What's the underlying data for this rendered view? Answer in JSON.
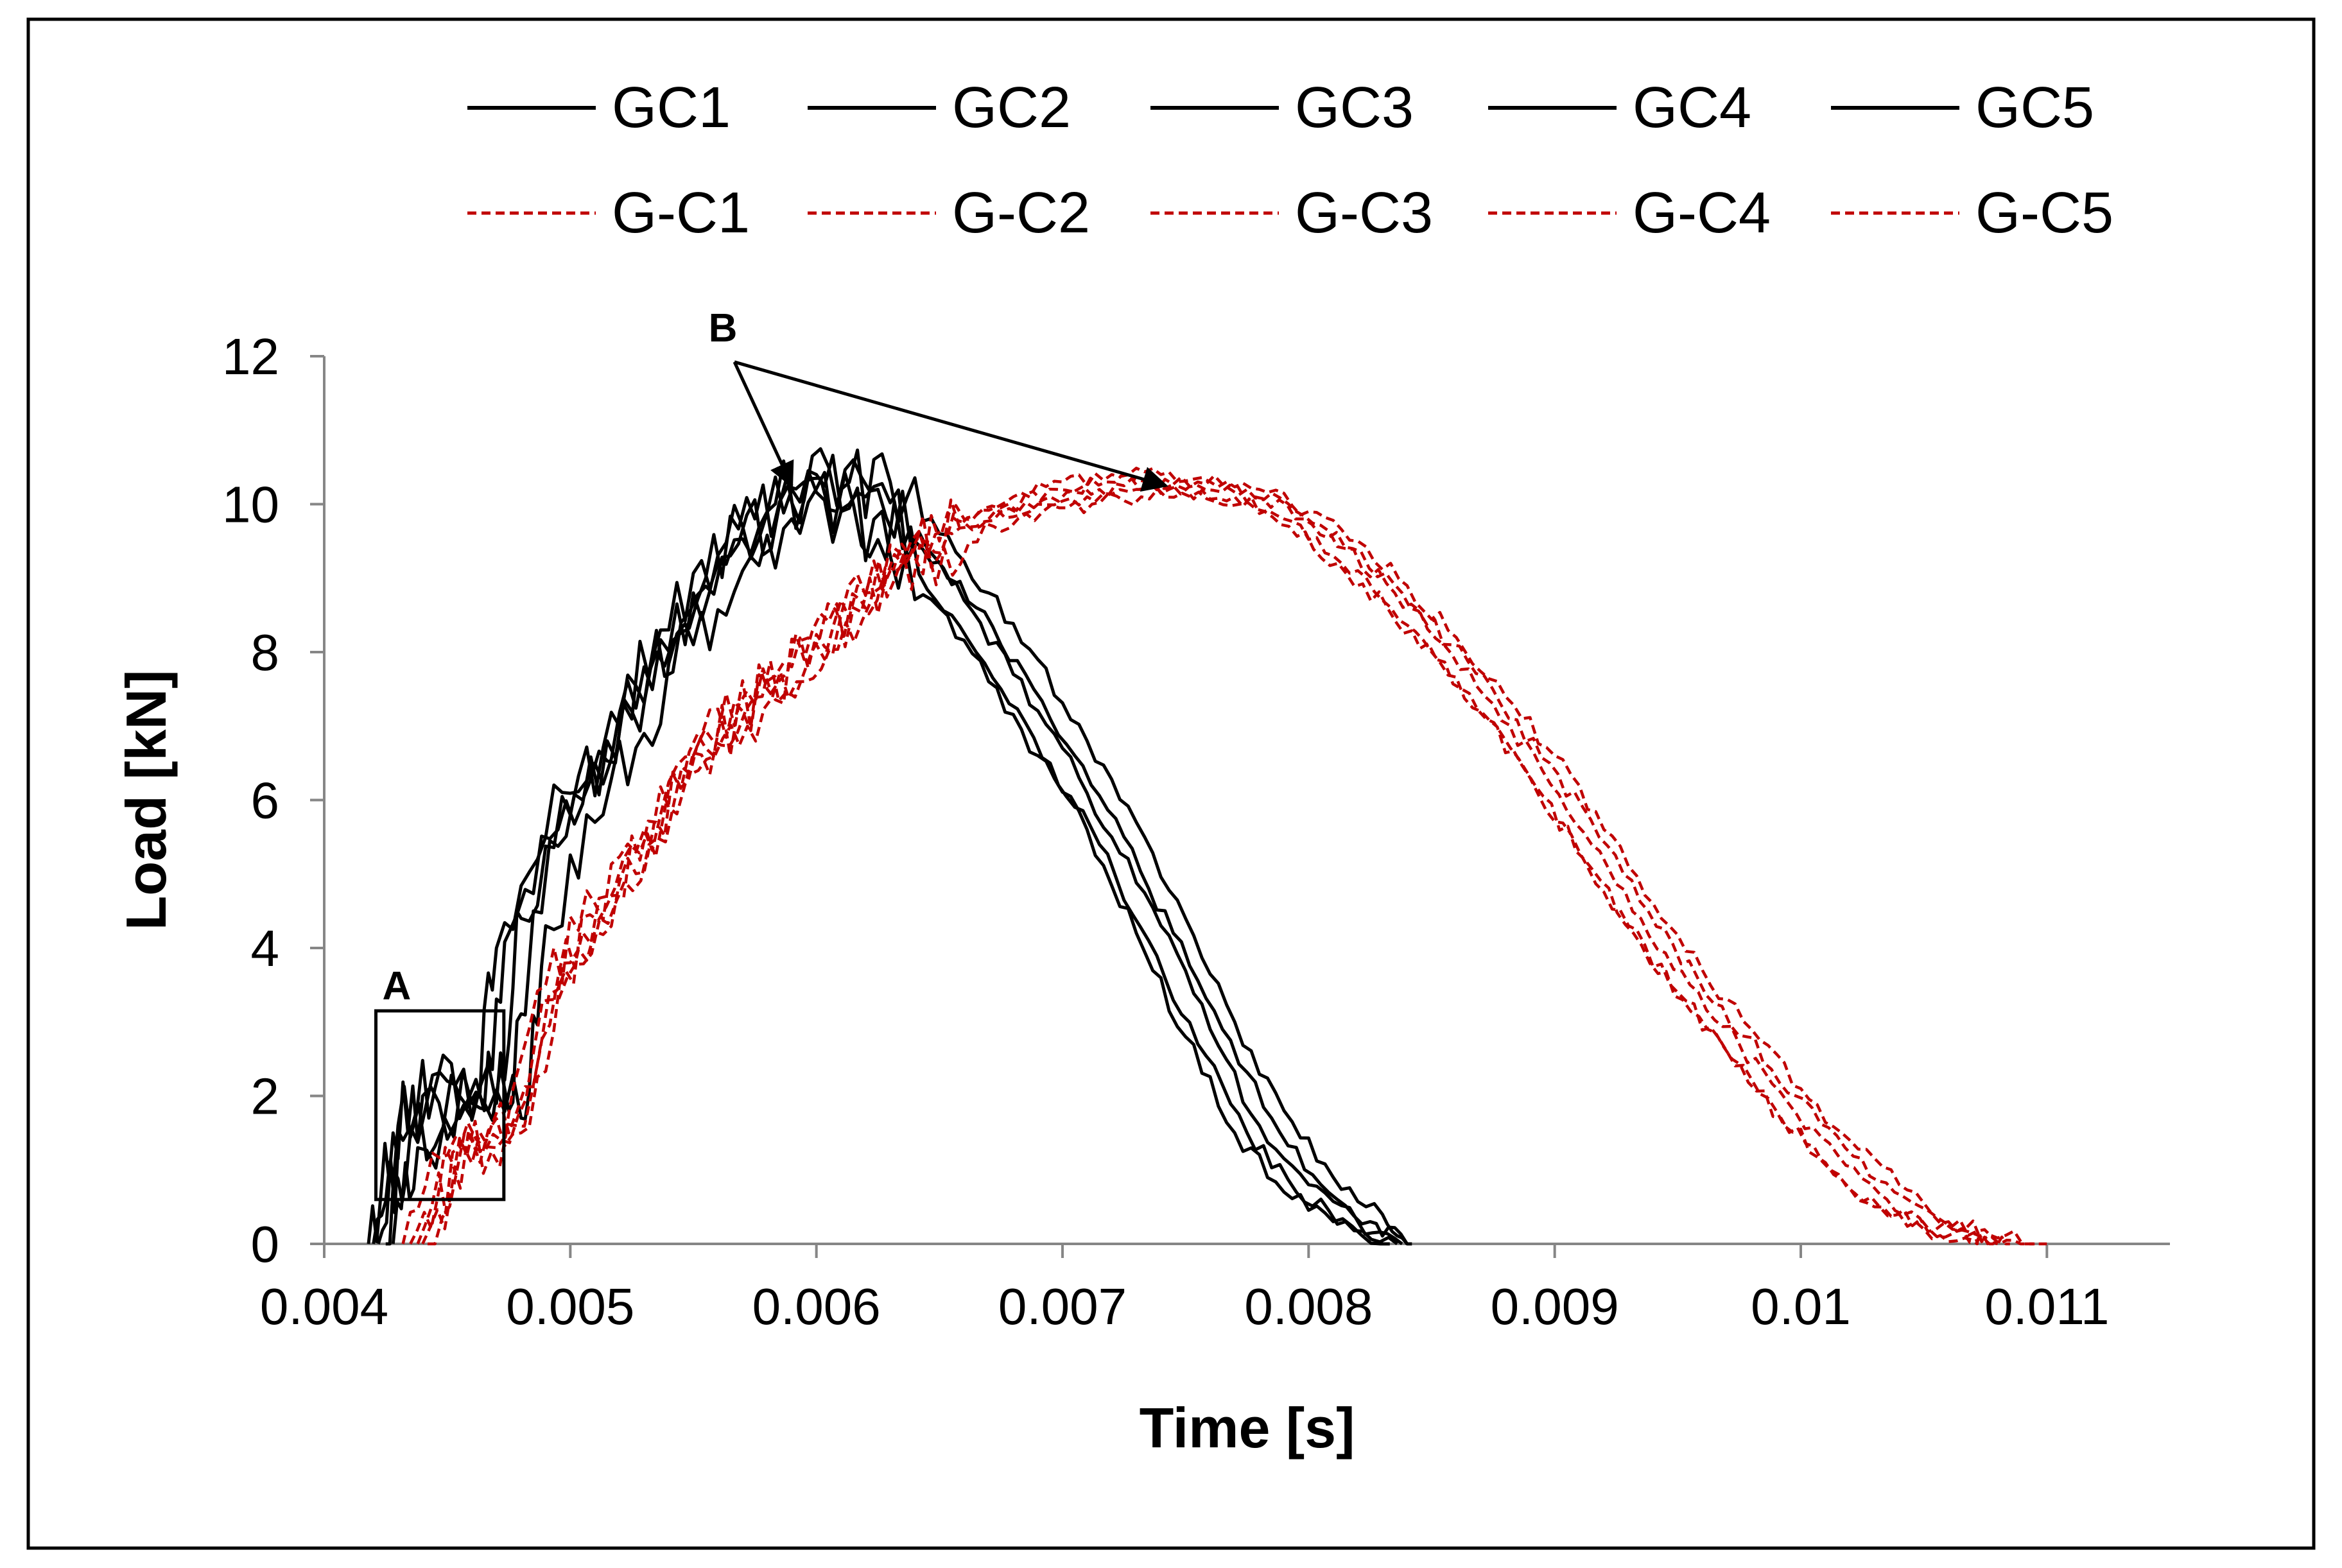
{
  "chart_data": {
    "type": "line",
    "title": "",
    "xlabel": "Time [s]",
    "ylabel": "Load [kN]",
    "xlim": [
      0.004,
      0.0115
    ],
    "ylim": [
      0,
      12
    ],
    "xticks": [
      0.004,
      0.005,
      0.006,
      0.007,
      0.008,
      0.009,
      0.01,
      0.011
    ],
    "xtick_labels": [
      "0.004",
      "0.005",
      "0.006",
      "0.007",
      "0.008",
      "0.009",
      "0.01",
      "0.011"
    ],
    "yticks": [
      0,
      2,
      4,
      6,
      8,
      10,
      12
    ],
    "ytick_labels": [
      "0",
      "2",
      "4",
      "6",
      "8",
      "10",
      "12"
    ],
    "grid": false,
    "legend_position": "top",
    "colors": {
      "solid": "#000000",
      "dashed": "#c00000"
    },
    "series": [
      {
        "name": "GC1",
        "style": "solid",
        "color": "#000000",
        "x": [
          0.00418,
          0.00428,
          0.0044,
          0.0046,
          0.0047,
          0.0049,
          0.0051,
          0.0053,
          0.0055,
          0.0057,
          0.0059,
          0.0061,
          0.0063,
          0.0065,
          0.0067,
          0.0069,
          0.0071,
          0.0073,
          0.0075,
          0.0077,
          0.0079,
          0.0081,
          0.00833
        ],
        "y": [
          0,
          1.5,
          2.0,
          1.7,
          4.0,
          5.5,
          6.5,
          7.8,
          8.8,
          9.7,
          10.2,
          9.9,
          9.3,
          8.6,
          7.6,
          6.6,
          5.6,
          4.2,
          2.8,
          1.5,
          0.7,
          0.3,
          0
        ]
      },
      {
        "name": "GC2",
        "style": "solid",
        "color": "#000000",
        "x": [
          0.0042,
          0.0043,
          0.00445,
          0.00465,
          0.00475,
          0.00495,
          0.00515,
          0.00535,
          0.00555,
          0.00575,
          0.00595,
          0.00615,
          0.00635,
          0.00655,
          0.00675,
          0.00695,
          0.00715,
          0.00735,
          0.00755,
          0.00775,
          0.00795,
          0.00815,
          0.00836
        ],
        "y": [
          0,
          1.6,
          2.1,
          1.8,
          4.2,
          5.6,
          6.8,
          8.0,
          9.0,
          9.8,
          10.3,
          10.0,
          9.4,
          8.5,
          7.5,
          6.5,
          5.4,
          4.1,
          2.7,
          1.5,
          0.7,
          0.3,
          0
        ]
      },
      {
        "name": "GC3",
        "style": "solid",
        "color": "#000000",
        "x": [
          0.00422,
          0.00432,
          0.0045,
          0.0047,
          0.0048,
          0.005,
          0.0052,
          0.0054,
          0.0056,
          0.0058,
          0.006,
          0.0062,
          0.0064,
          0.0066,
          0.0068,
          0.007,
          0.0072,
          0.0074,
          0.0076,
          0.0078,
          0.008,
          0.0082,
          0.00838
        ],
        "y": [
          0,
          1.4,
          2.2,
          1.9,
          4.4,
          5.8,
          7.0,
          8.3,
          9.2,
          9.9,
          10.4,
          10.1,
          9.5,
          8.7,
          7.7,
          6.7,
          5.5,
          4.3,
          2.9,
          1.6,
          0.8,
          0.3,
          0
        ]
      },
      {
        "name": "GC4",
        "style": "solid",
        "color": "#000000",
        "x": [
          0.00425,
          0.00435,
          0.00455,
          0.00475,
          0.00485,
          0.00505,
          0.00525,
          0.00545,
          0.00565,
          0.00585,
          0.00605,
          0.00625,
          0.00645,
          0.00665,
          0.00685,
          0.00705,
          0.00725,
          0.00745,
          0.00765,
          0.00785,
          0.00805,
          0.00825,
          0.0084
        ],
        "y": [
          0,
          1.5,
          2.0,
          1.8,
          4.5,
          6.0,
          7.2,
          8.4,
          9.3,
          10.0,
          10.5,
          10.2,
          9.4,
          8.6,
          7.7,
          6.6,
          5.5,
          4.2,
          2.9,
          1.7,
          0.8,
          0.3,
          0
        ]
      },
      {
        "name": "GC5",
        "style": "solid",
        "color": "#000000",
        "x": [
          0.00428,
          0.00438,
          0.0046,
          0.0048,
          0.0049,
          0.0051,
          0.0053,
          0.0055,
          0.0057,
          0.0059,
          0.0061,
          0.0063,
          0.0065,
          0.0067,
          0.0069,
          0.0071,
          0.0073,
          0.0075,
          0.0077,
          0.0079,
          0.0081,
          0.0083,
          0.00842
        ],
        "y": [
          0,
          1.3,
          1.9,
          1.7,
          4.3,
          5.7,
          6.9,
          8.1,
          9.1,
          9.8,
          10.2,
          10.3,
          9.6,
          8.8,
          7.9,
          6.8,
          5.7,
          4.4,
          3.0,
          1.8,
          0.9,
          0.4,
          0
        ]
      },
      {
        "name": "G-C1",
        "style": "dashed",
        "color": "#c00000",
        "x": [
          0.00432,
          0.0045,
          0.0047,
          0.0049,
          0.0051,
          0.0053,
          0.0055,
          0.0057,
          0.0059,
          0.0061,
          0.0063,
          0.0065,
          0.0067,
          0.0069,
          0.0071,
          0.0073,
          0.0075,
          0.0077,
          0.0079,
          0.0081,
          0.0083,
          0.0085,
          0.0087,
          0.0089,
          0.0091,
          0.0093,
          0.0095,
          0.0097,
          0.0099,
          0.0101,
          0.0103,
          0.0105,
          0.0107,
          0.01075
        ],
        "y": [
          0,
          1.2,
          1.3,
          3.5,
          4.6,
          5.6,
          6.6,
          7.2,
          7.8,
          8.5,
          9.1,
          9.5,
          9.8,
          10.0,
          10.1,
          10.2,
          10.2,
          10.1,
          9.8,
          9.3,
          8.7,
          8.0,
          7.2,
          6.3,
          5.3,
          4.3,
          3.4,
          2.6,
          1.8,
          1.1,
          0.5,
          0.2,
          0.05,
          0
        ]
      },
      {
        "name": "G-C2",
        "style": "dashed",
        "color": "#c00000",
        "x": [
          0.00435,
          0.00452,
          0.00472,
          0.00492,
          0.00512,
          0.00532,
          0.00552,
          0.00572,
          0.00592,
          0.00612,
          0.00632,
          0.00652,
          0.00672,
          0.00692,
          0.00712,
          0.00732,
          0.00752,
          0.00772,
          0.00792,
          0.00812,
          0.00832,
          0.00852,
          0.00872,
          0.00892,
          0.00912,
          0.00932,
          0.00952,
          0.00972,
          0.00992,
          0.01012,
          0.01032,
          0.01052,
          0.01072,
          0.0108
        ],
        "y": [
          0,
          1.1,
          1.4,
          3.3,
          4.4,
          5.4,
          6.4,
          7.0,
          7.6,
          8.4,
          9.0,
          9.4,
          9.7,
          9.9,
          10.0,
          10.1,
          10.1,
          10.0,
          9.7,
          9.2,
          8.6,
          7.9,
          7.1,
          6.2,
          5.2,
          4.2,
          3.3,
          2.5,
          1.7,
          1.0,
          0.5,
          0.2,
          0.05,
          0
        ]
      },
      {
        "name": "G-C3",
        "style": "dashed",
        "color": "#c00000",
        "x": [
          0.00438,
          0.00455,
          0.00475,
          0.00495,
          0.00515,
          0.00535,
          0.00555,
          0.00575,
          0.00595,
          0.00615,
          0.00635,
          0.00655,
          0.00675,
          0.00695,
          0.00715,
          0.00735,
          0.00755,
          0.00775,
          0.00795,
          0.00815,
          0.00835,
          0.00855,
          0.00875,
          0.00895,
          0.00915,
          0.00935,
          0.00955,
          0.00975,
          0.00995,
          0.01015,
          0.01035,
          0.01055,
          0.01075,
          0.01085
        ],
        "y": [
          0,
          1.3,
          1.5,
          3.6,
          4.7,
          5.7,
          6.7,
          7.3,
          7.9,
          8.6,
          9.2,
          9.6,
          9.9,
          10.1,
          10.2,
          10.3,
          10.3,
          10.2,
          9.9,
          9.4,
          8.8,
          8.1,
          7.3,
          6.4,
          5.4,
          4.4,
          3.5,
          2.7,
          1.9,
          1.2,
          0.6,
          0.2,
          0.05,
          0
        ]
      },
      {
        "name": "G-C4",
        "style": "dashed",
        "color": "#c00000",
        "x": [
          0.0044,
          0.00458,
          0.00478,
          0.00498,
          0.00518,
          0.00538,
          0.00558,
          0.00578,
          0.00598,
          0.00618,
          0.00638,
          0.00658,
          0.00678,
          0.00698,
          0.00718,
          0.00738,
          0.00758,
          0.00778,
          0.00798,
          0.00818,
          0.00838,
          0.00858,
          0.00878,
          0.00898,
          0.00918,
          0.00938,
          0.00958,
          0.00978,
          0.00998,
          0.01018,
          0.01038,
          0.01058,
          0.01078,
          0.01095
        ],
        "y": [
          0,
          1.2,
          1.6,
          3.7,
          4.8,
          5.8,
          6.8,
          7.4,
          8.0,
          8.7,
          9.3,
          9.7,
          10.0,
          10.2,
          10.3,
          10.3,
          10.2,
          10.1,
          9.8,
          9.4,
          8.8,
          8.1,
          7.3,
          6.5,
          5.5,
          4.5,
          3.6,
          2.8,
          2.0,
          1.3,
          0.7,
          0.3,
          0.08,
          0
        ]
      },
      {
        "name": "G-C5",
        "style": "dashed",
        "color": "#c00000",
        "x": [
          0.00442,
          0.0046,
          0.0048,
          0.005,
          0.0052,
          0.0054,
          0.0056,
          0.0058,
          0.006,
          0.0062,
          0.0064,
          0.0066,
          0.0068,
          0.007,
          0.0072,
          0.0074,
          0.0076,
          0.0078,
          0.008,
          0.0082,
          0.0084,
          0.0086,
          0.0088,
          0.009,
          0.0092,
          0.0094,
          0.0096,
          0.0098,
          0.01,
          0.0102,
          0.0104,
          0.0106,
          0.0108,
          0.011
        ],
        "y": [
          0,
          1.4,
          1.5,
          3.8,
          4.9,
          5.9,
          6.9,
          7.5,
          8.1,
          8.8,
          9.4,
          9.8,
          10.1,
          10.3,
          10.4,
          10.4,
          10.3,
          10.2,
          9.9,
          9.5,
          8.9,
          8.2,
          7.4,
          6.6,
          5.6,
          4.6,
          3.7,
          2.9,
          2.1,
          1.4,
          0.8,
          0.3,
          0.08,
          0
        ]
      }
    ],
    "annotations": [
      {
        "label": "A",
        "kind": "box",
        "x_range": [
          0.00421,
          0.00473
        ],
        "y_range": [
          0.6,
          3.15
        ]
      },
      {
        "label": "B",
        "kind": "arrows",
        "text_at": [
          0.00562,
          12.2
        ],
        "targets": [
          [
            0.0059,
            10.25
          ],
          [
            0.00742,
            10.25
          ]
        ]
      }
    ]
  }
}
